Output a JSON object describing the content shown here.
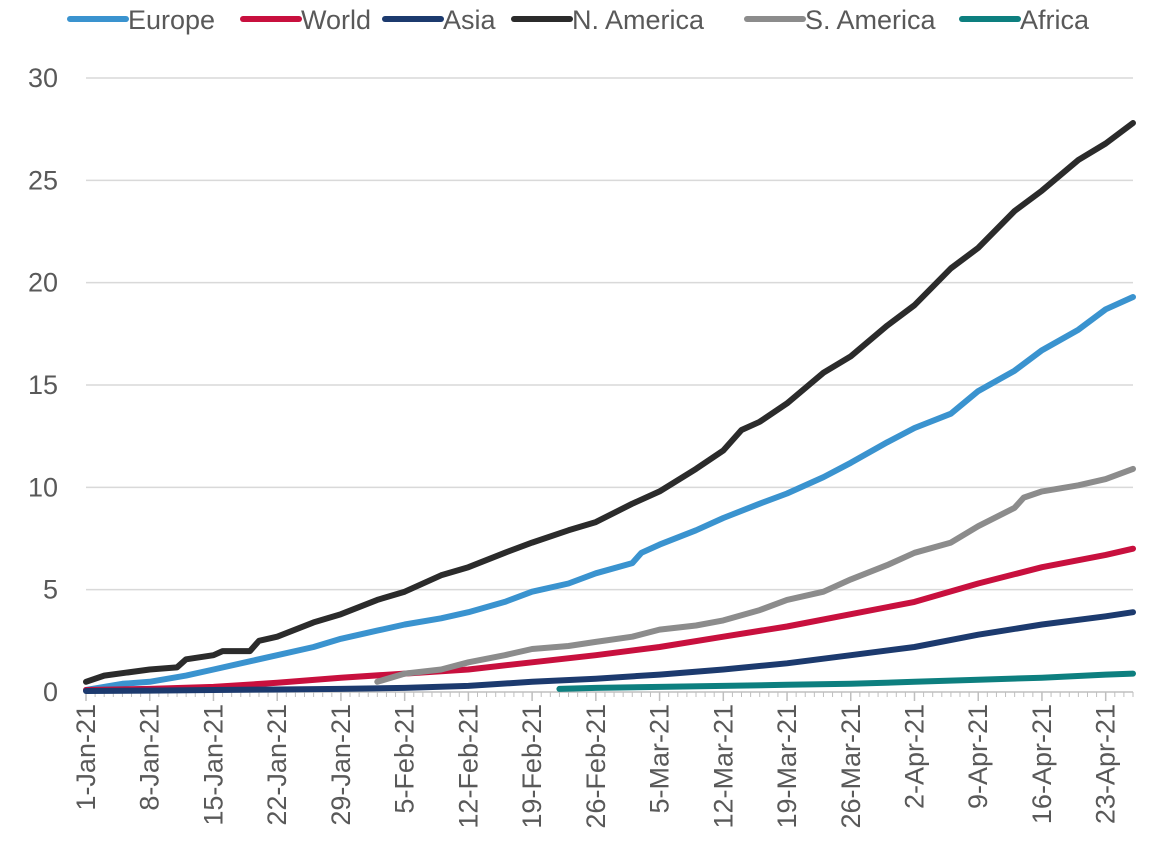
{
  "chart_data": {
    "type": "line",
    "title": "",
    "xlabel": "",
    "ylabel": "",
    "ylim": [
      0,
      30
    ],
    "yticks": [
      "0",
      "5",
      "10",
      "15",
      "20",
      "25",
      "30"
    ],
    "x_start": "1-Jan-21",
    "x_end": "26-Apr-21",
    "x_ticks": [
      "1-Jan-21",
      "8-Jan-21",
      "15-Jan-21",
      "22-Jan-21",
      "29-Jan-21",
      "5-Feb-21",
      "12-Feb-21",
      "19-Feb-21",
      "26-Feb-21",
      "5-Mar-21",
      "12-Mar-21",
      "19-Mar-21",
      "26-Mar-21",
      "2-Apr-21",
      "9-Apr-21",
      "16-Apr-21",
      "23-Apr-21"
    ],
    "grid": true,
    "legend_position": "top",
    "series": [
      {
        "name": "Europe",
        "color": "#3a93cf",
        "points": [
          [
            "1-Jan-21",
            0.1
          ],
          [
            "5-Jan-21",
            0.4
          ],
          [
            "8-Jan-21",
            0.5
          ],
          [
            "12-Jan-21",
            0.8
          ],
          [
            "15-Jan-21",
            1.1
          ],
          [
            "19-Jan-21",
            1.5
          ],
          [
            "22-Jan-21",
            1.8
          ],
          [
            "26-Jan-21",
            2.2
          ],
          [
            "29-Jan-21",
            2.6
          ],
          [
            "2-Feb-21",
            3.0
          ],
          [
            "5-Feb-21",
            3.3
          ],
          [
            "9-Feb-21",
            3.6
          ],
          [
            "12-Feb-21",
            3.9
          ],
          [
            "16-Feb-21",
            4.4
          ],
          [
            "19-Feb-21",
            4.9
          ],
          [
            "23-Feb-21",
            5.3
          ],
          [
            "26-Feb-21",
            5.8
          ],
          [
            "2-Mar-21",
            6.3
          ],
          [
            "3-Mar-21",
            6.8
          ],
          [
            "5-Mar-21",
            7.2
          ],
          [
            "9-Mar-21",
            7.9
          ],
          [
            "12-Mar-21",
            8.5
          ],
          [
            "16-Mar-21",
            9.2
          ],
          [
            "19-Mar-21",
            9.7
          ],
          [
            "23-Mar-21",
            10.5
          ],
          [
            "26-Mar-21",
            11.2
          ],
          [
            "30-Mar-21",
            12.2
          ],
          [
            "2-Apr-21",
            12.9
          ],
          [
            "6-Apr-21",
            13.6
          ],
          [
            "9-Apr-21",
            14.7
          ],
          [
            "13-Apr-21",
            15.7
          ],
          [
            "16-Apr-21",
            16.7
          ],
          [
            "20-Apr-21",
            17.7
          ],
          [
            "23-Apr-21",
            18.7
          ],
          [
            "26-Apr-21",
            19.3
          ]
        ]
      },
      {
        "name": "World",
        "color": "#c8103e",
        "points": [
          [
            "1-Jan-21",
            0.1
          ],
          [
            "8-Jan-21",
            0.15
          ],
          [
            "15-Jan-21",
            0.25
          ],
          [
            "22-Jan-21",
            0.45
          ],
          [
            "29-Jan-21",
            0.7
          ],
          [
            "5-Feb-21",
            0.9
          ],
          [
            "12-Feb-21",
            1.1
          ],
          [
            "19-Feb-21",
            1.45
          ],
          [
            "26-Feb-21",
            1.8
          ],
          [
            "5-Mar-21",
            2.2
          ],
          [
            "12-Mar-21",
            2.7
          ],
          [
            "19-Mar-21",
            3.2
          ],
          [
            "26-Mar-21",
            3.8
          ],
          [
            "2-Apr-21",
            4.4
          ],
          [
            "9-Apr-21",
            5.3
          ],
          [
            "16-Apr-21",
            6.1
          ],
          [
            "23-Apr-21",
            6.7
          ],
          [
            "26-Apr-21",
            7.0
          ]
        ]
      },
      {
        "name": "Asia",
        "color": "#1c3a6e",
        "points": [
          [
            "1-Jan-21",
            0.05
          ],
          [
            "8-Jan-21",
            0.07
          ],
          [
            "15-Jan-21",
            0.1
          ],
          [
            "22-Jan-21",
            0.12
          ],
          [
            "29-Jan-21",
            0.15
          ],
          [
            "5-Feb-21",
            0.2
          ],
          [
            "12-Feb-21",
            0.3
          ],
          [
            "19-Feb-21",
            0.5
          ],
          [
            "26-Feb-21",
            0.65
          ],
          [
            "5-Mar-21",
            0.85
          ],
          [
            "12-Mar-21",
            1.1
          ],
          [
            "19-Mar-21",
            1.4
          ],
          [
            "26-Mar-21",
            1.8
          ],
          [
            "2-Apr-21",
            2.2
          ],
          [
            "9-Apr-21",
            2.8
          ],
          [
            "16-Apr-21",
            3.3
          ],
          [
            "23-Apr-21",
            3.7
          ],
          [
            "26-Apr-21",
            3.9
          ]
        ]
      },
      {
        "name": "N. America",
        "color": "#2b2b2b",
        "points": [
          [
            "1-Jan-21",
            0.5
          ],
          [
            "3-Jan-21",
            0.8
          ],
          [
            "8-Jan-21",
            1.1
          ],
          [
            "11-Jan-21",
            1.2
          ],
          [
            "12-Jan-21",
            1.6
          ],
          [
            "15-Jan-21",
            1.8
          ],
          [
            "16-Jan-21",
            2.0
          ],
          [
            "19-Jan-21",
            2.0
          ],
          [
            "20-Jan-21",
            2.5
          ],
          [
            "22-Jan-21",
            2.7
          ],
          [
            "26-Jan-21",
            3.4
          ],
          [
            "29-Jan-21",
            3.8
          ],
          [
            "2-Feb-21",
            4.5
          ],
          [
            "5-Feb-21",
            4.9
          ],
          [
            "9-Feb-21",
            5.7
          ],
          [
            "12-Feb-21",
            6.1
          ],
          [
            "16-Feb-21",
            6.8
          ],
          [
            "19-Feb-21",
            7.3
          ],
          [
            "23-Feb-21",
            7.9
          ],
          [
            "26-Feb-21",
            8.3
          ],
          [
            "2-Mar-21",
            9.2
          ],
          [
            "5-Mar-21",
            9.8
          ],
          [
            "9-Mar-21",
            10.9
          ],
          [
            "12-Mar-21",
            11.8
          ],
          [
            "14-Mar-21",
            12.8
          ],
          [
            "16-Mar-21",
            13.2
          ],
          [
            "19-Mar-21",
            14.1
          ],
          [
            "23-Mar-21",
            15.6
          ],
          [
            "26-Mar-21",
            16.4
          ],
          [
            "30-Mar-21",
            17.9
          ],
          [
            "2-Apr-21",
            18.9
          ],
          [
            "6-Apr-21",
            20.7
          ],
          [
            "9-Apr-21",
            21.7
          ],
          [
            "13-Apr-21",
            23.5
          ],
          [
            "16-Apr-21",
            24.5
          ],
          [
            "20-Apr-21",
            26.0
          ],
          [
            "23-Apr-21",
            26.8
          ],
          [
            "26-Apr-21",
            27.8
          ]
        ]
      },
      {
        "name": "S. America",
        "color": "#8c8c8c",
        "points": [
          [
            "2-Feb-21",
            0.5
          ],
          [
            "5-Feb-21",
            0.9
          ],
          [
            "9-Feb-21",
            1.1
          ],
          [
            "12-Feb-21",
            1.45
          ],
          [
            "16-Feb-21",
            1.8
          ],
          [
            "19-Feb-21",
            2.1
          ],
          [
            "23-Feb-21",
            2.25
          ],
          [
            "26-Feb-21",
            2.45
          ],
          [
            "2-Mar-21",
            2.7
          ],
          [
            "5-Mar-21",
            3.05
          ],
          [
            "9-Mar-21",
            3.25
          ],
          [
            "12-Mar-21",
            3.5
          ],
          [
            "16-Mar-21",
            4.0
          ],
          [
            "19-Mar-21",
            4.5
          ],
          [
            "23-Mar-21",
            4.9
          ],
          [
            "26-Mar-21",
            5.5
          ],
          [
            "30-Mar-21",
            6.2
          ],
          [
            "2-Apr-21",
            6.8
          ],
          [
            "6-Apr-21",
            7.3
          ],
          [
            "9-Apr-21",
            8.1
          ],
          [
            "13-Apr-21",
            9.0
          ],
          [
            "14-Apr-21",
            9.5
          ],
          [
            "16-Apr-21",
            9.8
          ],
          [
            "20-Apr-21",
            10.1
          ],
          [
            "23-Apr-21",
            10.4
          ],
          [
            "26-Apr-21",
            10.9
          ]
        ]
      },
      {
        "name": "Africa",
        "color": "#0d7f7f",
        "points": [
          [
            "22-Feb-21",
            0.15
          ],
          [
            "26-Feb-21",
            0.2
          ],
          [
            "5-Mar-21",
            0.25
          ],
          [
            "12-Mar-21",
            0.3
          ],
          [
            "19-Mar-21",
            0.35
          ],
          [
            "26-Mar-21",
            0.4
          ],
          [
            "2-Apr-21",
            0.5
          ],
          [
            "9-Apr-21",
            0.6
          ],
          [
            "16-Apr-21",
            0.7
          ],
          [
            "23-Apr-21",
            0.85
          ],
          [
            "26-Apr-21",
            0.9
          ]
        ]
      }
    ]
  }
}
